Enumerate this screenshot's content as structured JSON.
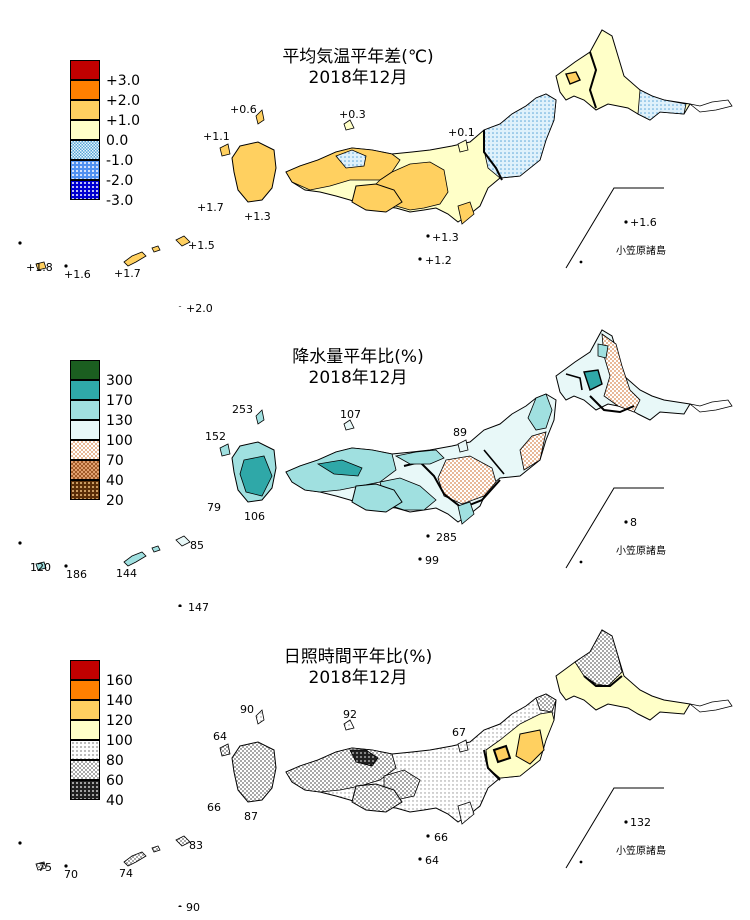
{
  "bonin_label": "小笠原諸島",
  "panels": [
    {
      "title_line1": "平均気温平年差(℃)",
      "title_line2": "2018年12月",
      "legend": [
        {
          "label": "+3.0",
          "color": "#c00000",
          "pattern": "solid"
        },
        {
          "label": "+2.0",
          "color": "#ff8000",
          "pattern": "solid"
        },
        {
          "label": "+1.0",
          "color": "#ffd060",
          "pattern": "solid"
        },
        {
          "label": "0.0",
          "color": "#ffffc8",
          "pattern": "solid"
        },
        {
          "label": "-1.0",
          "color": "#a8d8f0",
          "pattern": "dots-fine"
        },
        {
          "label": "-2.0",
          "color": "#5090f0",
          "pattern": "dots"
        },
        {
          "label": "-3.0",
          "color": "#0000d0",
          "pattern": "dots"
        }
      ],
      "values": {
        "soya": "+0.6",
        "west_sea_islands": "+1.1",
        "koshikijima": "+1.7",
        "tanegashima": "+1.3",
        "oki": "+0.3",
        "sado": "+0.1",
        "hachijo": "+1.3",
        "izu_south": "+1.2",
        "amami": "+1.5",
        "yonaguni": "+1.8",
        "ishigaki": "+1.6",
        "okinawa": "+1.7",
        "minamidaito": "+2.0",
        "chichijima": "+1.6"
      }
    },
    {
      "title_line1": "降水量平年比(%)",
      "title_line2": "2018年12月",
      "legend": [
        {
          "label": "300",
          "color": "#1b5e20",
          "pattern": "solid"
        },
        {
          "label": "170",
          "color": "#2fa8a8",
          "pattern": "solid"
        },
        {
          "label": "130",
          "color": "#a0e0e0",
          "pattern": "solid"
        },
        {
          "label": "100",
          "color": "#e8f8f8",
          "pattern": "solid"
        },
        {
          "label": "70",
          "color": "#f0d0b8",
          "pattern": "check"
        },
        {
          "label": "40",
          "color": "#c08050",
          "pattern": "check"
        },
        {
          "label": "20",
          "color": "#603010",
          "pattern": "dots"
        }
      ],
      "values": {
        "soya": "253",
        "west_sea_islands": "152",
        "koshikijima": "79",
        "tanegashima": "106",
        "oki": "107",
        "sado": "89",
        "hachijo": "285",
        "izu_south": "99",
        "amami": "85",
        "yonaguni": "120",
        "ishigaki": "186",
        "okinawa": "144",
        "minamidaito": "147",
        "chichijima": "8"
      }
    },
    {
      "title_line1": "日照時間平年比(%)",
      "title_line2": "2018年12月",
      "legend": [
        {
          "label": "160",
          "color": "#c00000",
          "pattern": "solid"
        },
        {
          "label": "140",
          "color": "#ff8000",
          "pattern": "solid"
        },
        {
          "label": "120",
          "color": "#ffd060",
          "pattern": "solid"
        },
        {
          "label": "100",
          "color": "#ffffc8",
          "pattern": "solid"
        },
        {
          "label": "80",
          "color": "#ffffff",
          "pattern": "dots-fine"
        },
        {
          "label": "60",
          "color": "#d0d0d0",
          "pattern": "check"
        },
        {
          "label": "40",
          "color": "#303030",
          "pattern": "dots"
        }
      ],
      "values": {
        "soya": "90",
        "west_sea_islands": "64",
        "koshikijima": "66",
        "tanegashima": "87",
        "oki": "92",
        "sado": "67",
        "hachijo": "66",
        "izu_south": "64",
        "amami": "83",
        "yonaguni": "75",
        "ishigaki": "70",
        "okinawa": "74",
        "minamidaito": "90",
        "chichijima": "132"
      }
    }
  ]
}
